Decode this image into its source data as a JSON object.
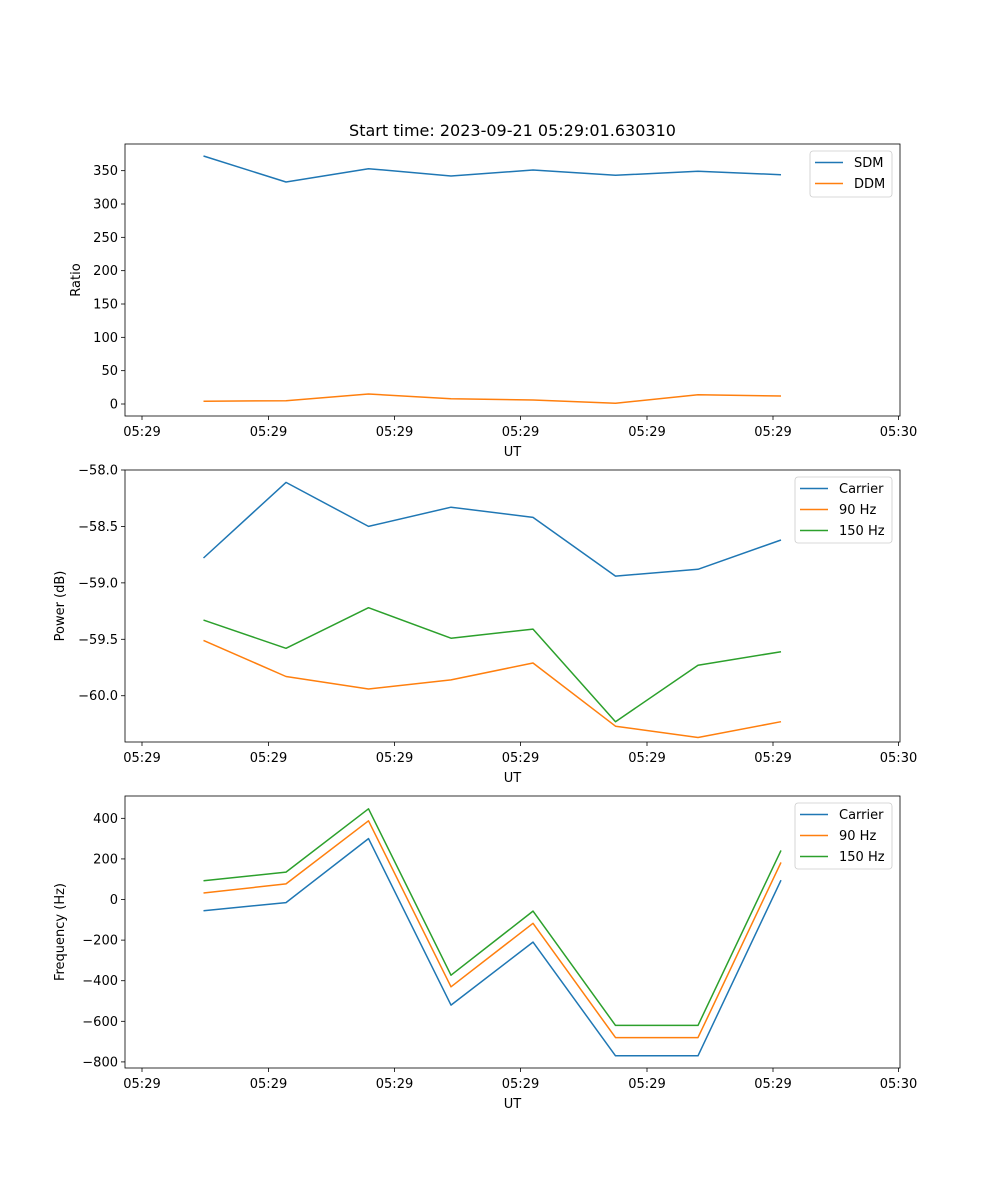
{
  "figure_title": "Start time: 2023-09-21 05:29:01.630310",
  "chart_data": [
    {
      "type": "line",
      "title": "Start time: 2023-09-21 05:29:01.630310",
      "xlabel": "UT",
      "ylabel": "Ratio",
      "x_tick_labels": [
        "05:29",
        "05:29",
        "05:29",
        "05:29",
        "05:29",
        "05:29",
        "05:30"
      ],
      "y_ticks": [
        0,
        50,
        100,
        150,
        200,
        250,
        300,
        350
      ],
      "y_tick_labels": [
        "0",
        "50",
        "100",
        "150",
        "200",
        "250",
        "300",
        "350"
      ],
      "ylim": [
        -18,
        390
      ],
      "legend_position": "top-right",
      "series": [
        {
          "name": "SDM",
          "color": "#1f77b4",
          "values": [
            372,
            333,
            353,
            342,
            351,
            343,
            349,
            344
          ]
        },
        {
          "name": "DDM",
          "color": "#ff7f0e",
          "values": [
            4,
            5,
            15,
            8,
            6,
            1,
            14,
            12
          ]
        }
      ]
    },
    {
      "type": "line",
      "title": "",
      "xlabel": "UT",
      "ylabel": "Power (dB)",
      "x_tick_labels": [
        "05:29",
        "05:29",
        "05:29",
        "05:29",
        "05:29",
        "05:29",
        "05:30"
      ],
      "y_ticks": [
        -60.0,
        -59.5,
        -59.0,
        -58.5,
        -58.0
      ],
      "y_tick_labels": [
        "−60.0",
        "−59.5",
        "−59.0",
        "−58.5",
        "−58.0"
      ],
      "ylim": [
        -60.41,
        -58.0
      ],
      "legend_position": "top-right",
      "series": [
        {
          "name": "Carrier",
          "color": "#1f77b4",
          "values": [
            -58.78,
            -58.11,
            -58.5,
            -58.33,
            -58.42,
            -58.94,
            -58.88,
            -58.62
          ]
        },
        {
          "name": "90 Hz",
          "color": "#ff7f0e",
          "values": [
            -59.51,
            -59.83,
            -59.94,
            -59.86,
            -59.71,
            -60.27,
            -60.37,
            -60.23
          ]
        },
        {
          "name": "150 Hz",
          "color": "#2ca02c",
          "values": [
            -59.33,
            -59.58,
            -59.22,
            -59.49,
            -59.41,
            -60.23,
            -59.73,
            -59.61
          ]
        }
      ]
    },
    {
      "type": "line",
      "title": "",
      "xlabel": "UT",
      "ylabel": "Frequency (Hz)",
      "x_tick_labels": [
        "05:29",
        "05:29",
        "05:29",
        "05:29",
        "05:29",
        "05:29",
        "05:30"
      ],
      "y_ticks": [
        -800,
        -600,
        -400,
        -200,
        0,
        200,
        400
      ],
      "y_tick_labels": [
        "−800",
        "−600",
        "−400",
        "−200",
        "0",
        "200",
        "400"
      ],
      "ylim": [
        -830,
        510
      ],
      "legend_position": "top-right",
      "series": [
        {
          "name": "Carrier",
          "color": "#1f77b4",
          "values": [
            -55,
            -15,
            300,
            -520,
            -210,
            -770,
            -770,
            95
          ]
        },
        {
          "name": "90 Hz",
          "color": "#ff7f0e",
          "values": [
            32,
            77,
            388,
            -430,
            -117,
            -680,
            -680,
            183
          ]
        },
        {
          "name": "150 Hz",
          "color": "#2ca02c",
          "values": [
            92,
            135,
            447,
            -373,
            -57,
            -620,
            -620,
            242
          ]
        }
      ]
    }
  ]
}
